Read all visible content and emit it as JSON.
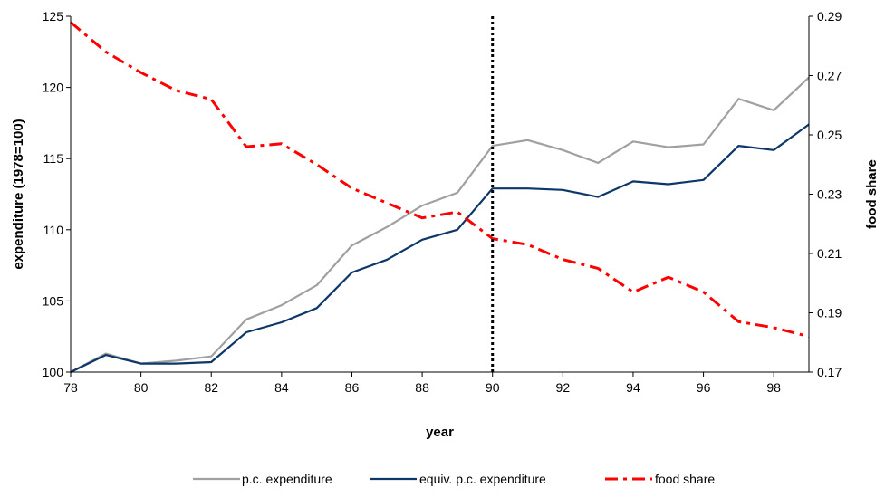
{
  "chart_data": {
    "type": "line",
    "xlabel": "year",
    "ylabel": "expenditure (1978=100)",
    "y2label": "food share",
    "x": [
      78,
      79,
      80,
      81,
      82,
      83,
      84,
      85,
      86,
      87,
      88,
      89,
      90,
      91,
      92,
      93,
      94,
      95,
      96,
      97,
      98,
      99
    ],
    "xlim": [
      78,
      99
    ],
    "xticks": [
      78,
      80,
      82,
      84,
      86,
      88,
      90,
      92,
      94,
      96,
      98
    ],
    "xtick_labels": [
      "78",
      "80",
      "82",
      "84",
      "86",
      "88",
      "90",
      "92",
      "94",
      "96",
      "98"
    ],
    "ylim": [
      100,
      125
    ],
    "yticks": [
      100,
      105,
      110,
      115,
      120,
      125
    ],
    "y2lim": [
      0.17,
      0.29
    ],
    "y2ticks": [
      0.17,
      0.19,
      0.21,
      0.23,
      0.25,
      0.27,
      0.29
    ],
    "y2tick_labels": [
      "0.17",
      "0.19",
      "0.21",
      "0.23",
      "0.25",
      "0.27",
      "0.29"
    ],
    "vline_x": 90,
    "grid": false,
    "legend_position": "bottom",
    "series": [
      {
        "name": "p.c. expenditure",
        "axis": "left",
        "color": "#a0a0a0",
        "style": "solid",
        "values": [
          100,
          101.3,
          100.6,
          100.8,
          101.1,
          103.7,
          104.7,
          106.1,
          108.9,
          110.2,
          111.7,
          112.6,
          115.9,
          116.3,
          115.6,
          114.7,
          116.2,
          115.8,
          116.0,
          119.2,
          118.4,
          120.7
        ]
      },
      {
        "name": "equiv. p.c. expenditure",
        "axis": "left",
        "color": "#0d3768",
        "style": "solid",
        "values": [
          100,
          101.2,
          100.6,
          100.6,
          100.7,
          102.8,
          103.5,
          104.5,
          107.0,
          107.9,
          109.3,
          110.0,
          112.9,
          112.9,
          112.8,
          112.3,
          113.4,
          113.2,
          113.5,
          115.9,
          115.6,
          117.4
        ]
      },
      {
        "name": "food share",
        "axis": "right",
        "color": "#ff0000",
        "style": "dash-dot",
        "values": [
          0.288,
          0.278,
          0.271,
          0.265,
          0.262,
          0.246,
          0.247,
          0.24,
          0.232,
          0.227,
          0.222,
          0.224,
          0.215,
          0.213,
          0.208,
          0.205,
          0.197,
          0.202,
          0.197,
          0.187,
          0.185,
          0.182
        ]
      }
    ]
  }
}
